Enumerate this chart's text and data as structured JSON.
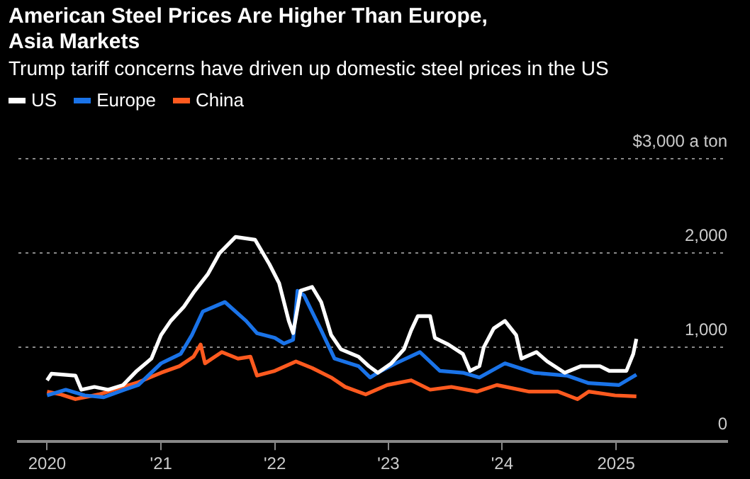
{
  "chart_data": {
    "type": "line",
    "title": "American Steel Prices Are Higher Than Europe, Asia Markets",
    "subtitle": "Trump tariff concerns have driven up domestic steel prices in the US",
    "legend": "top left",
    "grid": "y",
    "xlim": [
      "2019-10-01",
      "2025-12-24"
    ],
    "xticks": [
      {
        "value": "2020-01-01",
        "label": "2020"
      },
      {
        "value": "2021-01-01",
        "label": "'21"
      },
      {
        "value": "2022-01-01",
        "label": "'22"
      },
      {
        "value": "2023-01-01",
        "label": "'23"
      },
      {
        "value": "2024-01-01",
        "label": "'24"
      },
      {
        "value": "2025-01-01",
        "label": "2025"
      }
    ],
    "ylim": [
      0,
      3000
    ],
    "yticks": [
      0,
      {
        "value": 1000,
        "label": "1,000"
      },
      {
        "value": 2000,
        "label": "2,000"
      },
      {
        "value": 3000,
        "label": "$3,000 a ton"
      }
    ],
    "series": [
      {
        "name": "US",
        "color": "#ffffff",
        "x": [
          "2020-01-01",
          "2020-01-15",
          "2020-04-01",
          "2020-04-20",
          "2020-06-01",
          "2020-07-15",
          "2020-09-01",
          "2020-10-15",
          "2020-12-01",
          "2021-01-01",
          "2021-02-01",
          "2021-03-15",
          "2021-04-15",
          "2021-06-01",
          "2021-07-08",
          "2021-08-28",
          "2021-10-30",
          "2021-12-15",
          "2022-01-15",
          "2022-02-15",
          "2022-03-01",
          "2022-03-25",
          "2022-05-01",
          "2022-05-30",
          "2022-07-01",
          "2022-08-01",
          "2022-09-27",
          "2022-10-30",
          "2022-11-28",
          "2023-01-10",
          "2023-02-20",
          "2023-03-15",
          "2023-04-05",
          "2023-05-15",
          "2023-05-30",
          "2023-07-12",
          "2023-08-28",
          "2023-09-20",
          "2023-10-20",
          "2023-11-03",
          "2023-12-05",
          "2024-01-10",
          "2024-02-15",
          "2024-03-03",
          "2024-04-20",
          "2024-05-25",
          "2024-07-20",
          "2024-09-10",
          "2024-11-10",
          "2024-12-10",
          "2025-02-03",
          "2025-02-25",
          "2025-03-07"
        ],
        "values": [
          650,
          720,
          700,
          550,
          580,
          550,
          600,
          750,
          880,
          1130,
          1280,
          1430,
          1580,
          1780,
          2000,
          2170,
          2140,
          1880,
          1680,
          1280,
          1150,
          1600,
          1640,
          1480,
          1130,
          980,
          900,
          800,
          730,
          830,
          980,
          1180,
          1330,
          1330,
          1100,
          1030,
          930,
          750,
          800,
          1000,
          1200,
          1280,
          1130,
          880,
          950,
          850,
          730,
          800,
          800,
          750,
          750,
          930,
          1090
        ]
      },
      {
        "name": "Europe",
        "color": "#1a73e8",
        "x": [
          "2020-01-01",
          "2020-03-01",
          "2020-05-01",
          "2020-07-01",
          "2020-09-05",
          "2020-10-20",
          "2021-01-01",
          "2021-03-05",
          "2021-04-10",
          "2021-05-15",
          "2021-07-25",
          "2021-10-01",
          "2021-11-05",
          "2022-01-01",
          "2022-01-30",
          "2022-03-01",
          "2022-03-15",
          "2022-04-05",
          "2022-05-30",
          "2022-07-12",
          "2022-09-27",
          "2022-11-03",
          "2022-11-28",
          "2023-01-25",
          "2023-04-12",
          "2023-06-15",
          "2023-08-28",
          "2023-10-20",
          "2024-01-10",
          "2024-04-12",
          "2024-07-27",
          "2024-10-05",
          "2025-01-10",
          "2025-03-07"
        ],
        "values": [
          490,
          550,
          490,
          470,
          550,
          600,
          830,
          930,
          1130,
          1380,
          1480,
          1280,
          1150,
          1100,
          1040,
          1080,
          1600,
          1550,
          1180,
          880,
          800,
          680,
          730,
          830,
          950,
          750,
          730,
          680,
          830,
          730,
          700,
          620,
          600,
          710
        ]
      },
      {
        "name": "China",
        "color": "#ff5a1f",
        "x": [
          "2020-01-01",
          "2020-02-15",
          "2020-04-01",
          "2020-06-15",
          "2020-09-01",
          "2020-10-20",
          "2021-01-01",
          "2021-03-01",
          "2021-04-15",
          "2021-05-08",
          "2021-05-22",
          "2021-07-15",
          "2021-09-05",
          "2021-10-15",
          "2021-11-05",
          "2022-01-01",
          "2022-03-10",
          "2022-05-01",
          "2022-07-01",
          "2022-08-15",
          "2022-10-20",
          "2022-12-28",
          "2023-03-15",
          "2023-05-15",
          "2023-07-22",
          "2023-10-12",
          "2023-12-15",
          "2024-03-28",
          "2024-06-28",
          "2024-08-30",
          "2024-10-05",
          "2024-12-28",
          "2025-03-07"
        ],
        "values": [
          530,
          500,
          450,
          500,
          580,
          630,
          730,
          800,
          900,
          1030,
          830,
          950,
          880,
          900,
          700,
          750,
          850,
          780,
          680,
          580,
          500,
          600,
          650,
          550,
          580,
          530,
          600,
          530,
          530,
          450,
          530,
          490,
          480
        ]
      }
    ]
  }
}
